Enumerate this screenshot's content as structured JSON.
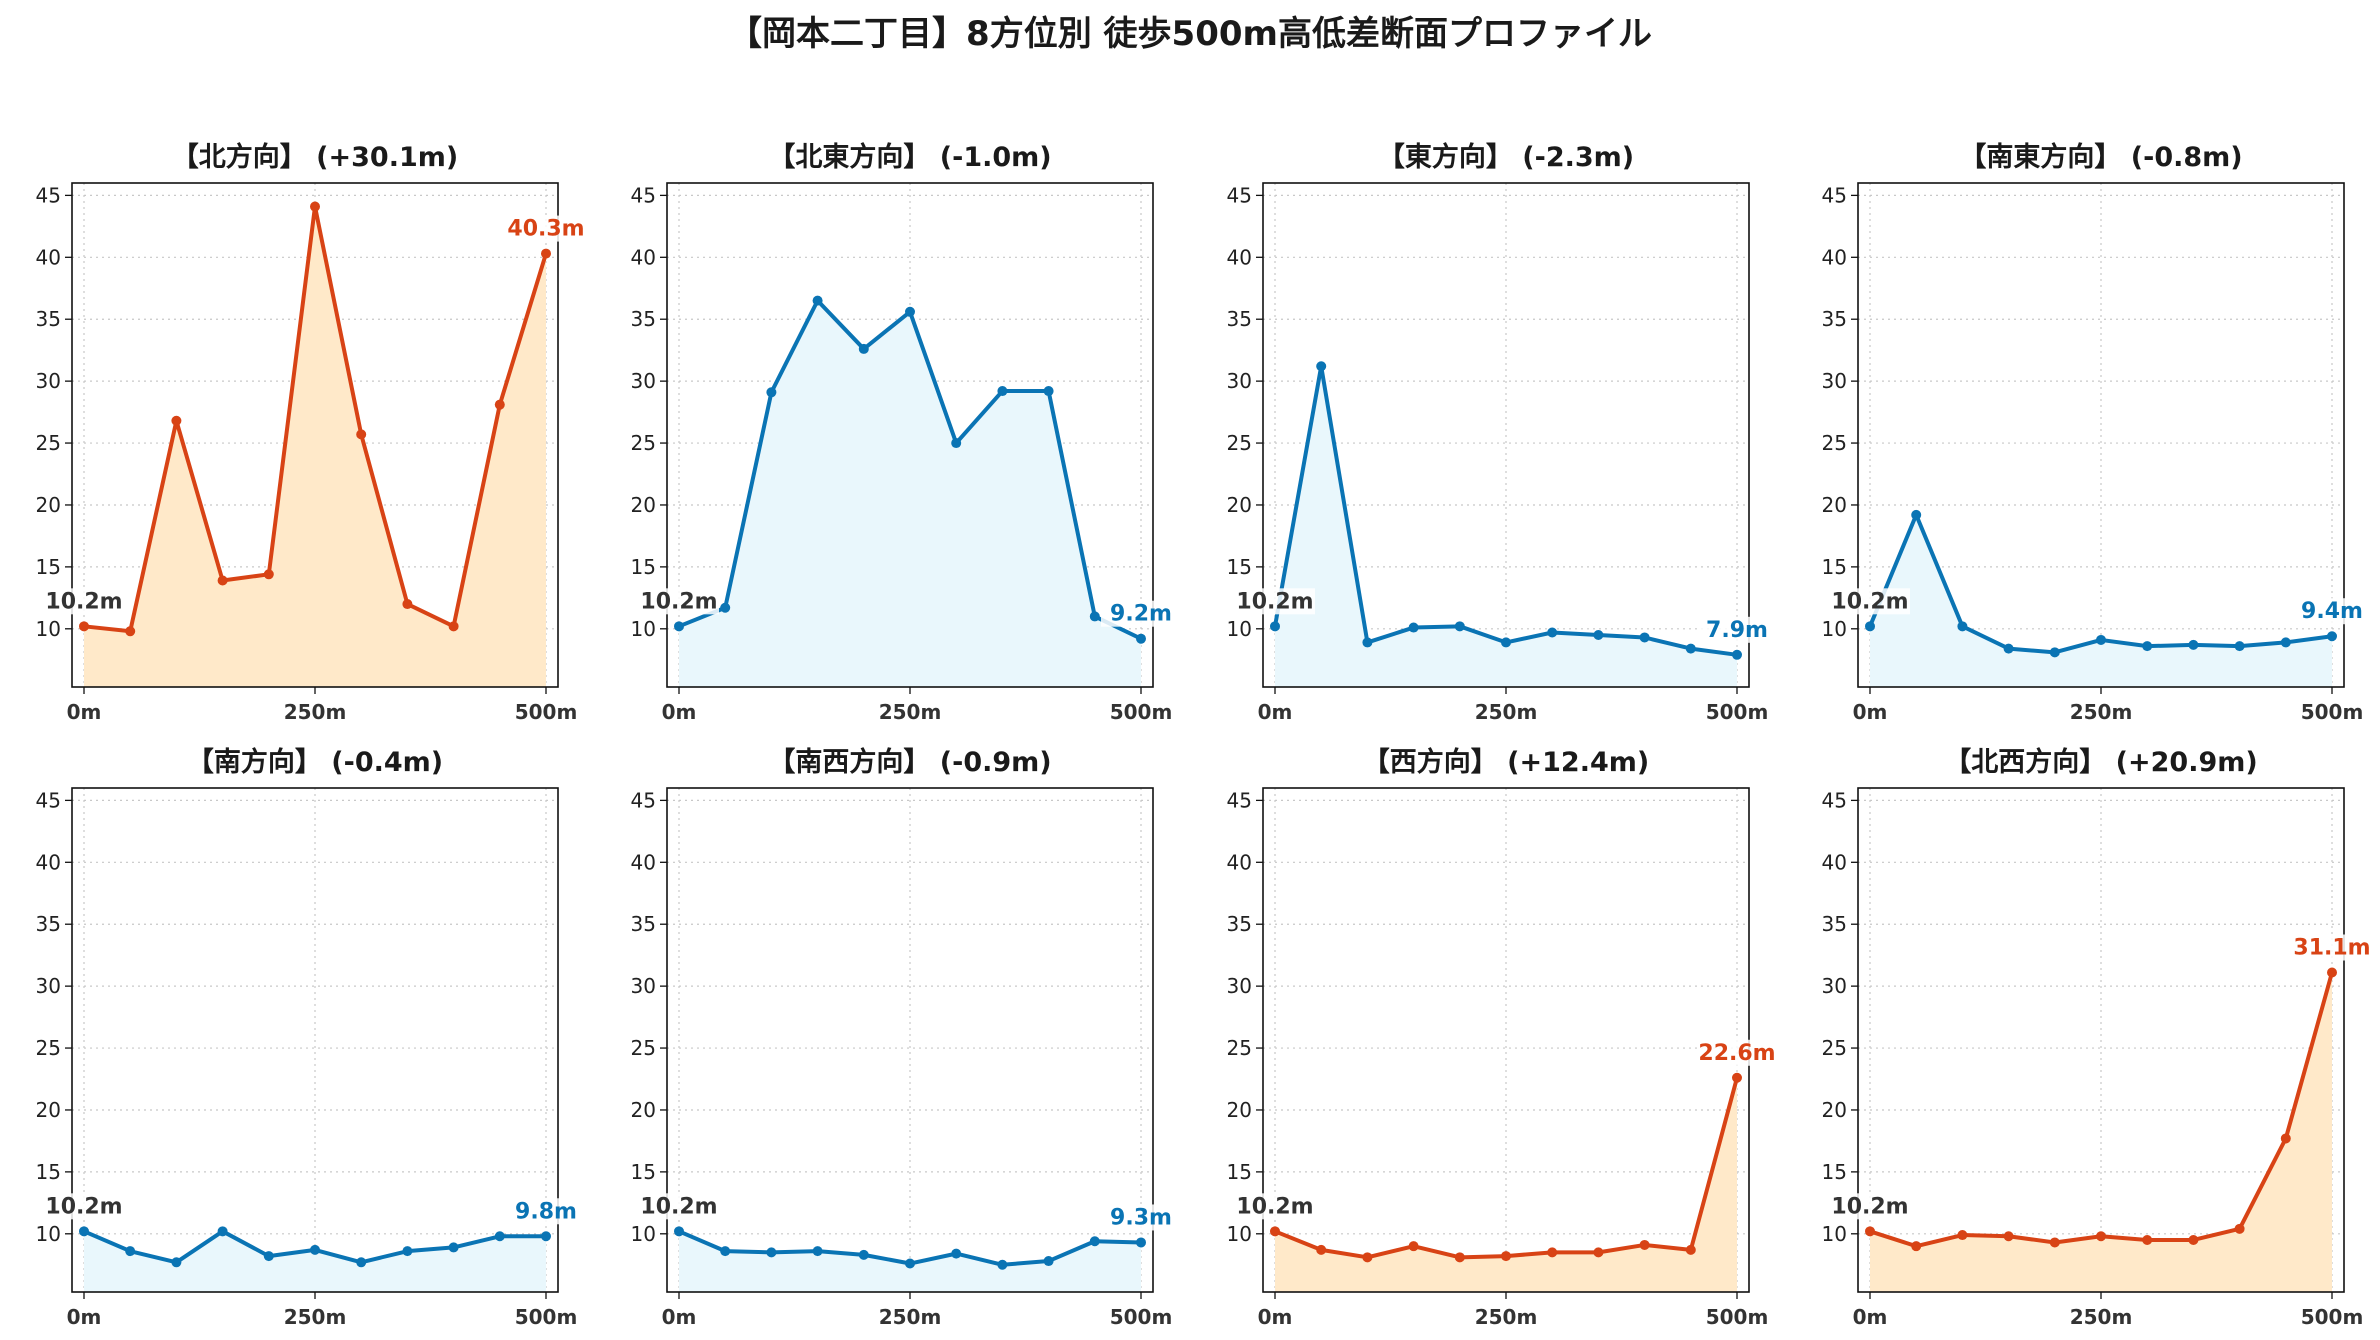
{
  "figure": {
    "title": "【岡本二丁目】8方位別 徒歩500m高低差断面プロファイル"
  },
  "colors": {
    "up_line": "#d84315",
    "up_fill": "#ffe9c9",
    "down_line": "#0a74b4",
    "down_fill": "#e9f7fc",
    "start_label": "#333333",
    "grid": "#c8c8c8"
  },
  "chart_data": [
    {
      "type": "area",
      "title": "【北方向】 (+30.1m)",
      "trend": "up",
      "x": [
        0,
        50,
        100,
        150,
        200,
        250,
        300,
        350,
        400,
        450,
        500
      ],
      "values": [
        10.2,
        9.8,
        26.8,
        13.9,
        14.4,
        44.1,
        25.7,
        12.0,
        10.2,
        28.1,
        40.3
      ],
      "start_label": "10.2m",
      "end_label": "40.3m",
      "xticks": [
        "0m",
        "250m",
        "500m"
      ],
      "yticks": [
        10,
        15,
        20,
        25,
        30,
        35,
        40,
        45
      ],
      "xlim": [
        0,
        500
      ],
      "ylim": [
        5.3,
        46
      ],
      "grid": true
    },
    {
      "type": "area",
      "title": "【北東方向】 (-1.0m)",
      "trend": "down",
      "x": [
        0,
        50,
        100,
        150,
        200,
        250,
        300,
        350,
        400,
        450,
        500
      ],
      "values": [
        10.2,
        11.7,
        29.1,
        36.5,
        32.6,
        35.6,
        25.0,
        29.2,
        29.2,
        11.0,
        9.2
      ],
      "start_label": "10.2m",
      "end_label": "9.2m",
      "xticks": [
        "0m",
        "250m",
        "500m"
      ],
      "yticks": [
        10,
        15,
        20,
        25,
        30,
        35,
        40,
        45
      ],
      "xlim": [
        0,
        500
      ],
      "ylim": [
        5.3,
        46
      ],
      "grid": true
    },
    {
      "type": "area",
      "title": "【東方向】 (-2.3m)",
      "trend": "down",
      "x": [
        0,
        50,
        100,
        150,
        200,
        250,
        300,
        350,
        400,
        450,
        500
      ],
      "values": [
        10.2,
        31.2,
        8.9,
        10.1,
        10.2,
        8.9,
        9.7,
        9.5,
        9.3,
        8.4,
        7.9
      ],
      "start_label": "10.2m",
      "end_label": "7.9m",
      "xticks": [
        "0m",
        "250m",
        "500m"
      ],
      "yticks": [
        10,
        15,
        20,
        25,
        30,
        35,
        40,
        45
      ],
      "xlim": [
        0,
        500
      ],
      "ylim": [
        5.3,
        46
      ],
      "grid": true
    },
    {
      "type": "area",
      "title": "【南東方向】 (-0.8m)",
      "trend": "down",
      "x": [
        0,
        50,
        100,
        150,
        200,
        250,
        300,
        350,
        400,
        450,
        500
      ],
      "values": [
        10.2,
        19.2,
        10.2,
        8.4,
        8.1,
        9.1,
        8.6,
        8.7,
        8.6,
        8.9,
        9.4
      ],
      "start_label": "10.2m",
      "end_label": "9.4m",
      "xticks": [
        "0m",
        "250m",
        "500m"
      ],
      "yticks": [
        10,
        15,
        20,
        25,
        30,
        35,
        40,
        45
      ],
      "xlim": [
        0,
        500
      ],
      "ylim": [
        5.3,
        46
      ],
      "grid": true
    },
    {
      "type": "area",
      "title": "【南方向】 (-0.4m)",
      "trend": "down",
      "x": [
        0,
        50,
        100,
        150,
        200,
        250,
        300,
        350,
        400,
        450,
        500
      ],
      "values": [
        10.2,
        8.6,
        7.7,
        10.2,
        8.2,
        8.7,
        7.7,
        8.6,
        8.9,
        9.8,
        9.8
      ],
      "start_label": "10.2m",
      "end_label": "9.8m",
      "xticks": [
        "0m",
        "250m",
        "500m"
      ],
      "yticks": [
        10,
        15,
        20,
        25,
        30,
        35,
        40,
        45
      ],
      "xlim": [
        0,
        500
      ],
      "ylim": [
        5.3,
        46
      ],
      "grid": true
    },
    {
      "type": "area",
      "title": "【南西方向】 (-0.9m)",
      "trend": "down",
      "x": [
        0,
        50,
        100,
        150,
        200,
        250,
        300,
        350,
        400,
        450,
        500
      ],
      "values": [
        10.2,
        8.6,
        8.5,
        8.6,
        8.3,
        7.6,
        8.4,
        7.5,
        7.8,
        9.4,
        9.3
      ],
      "start_label": "10.2m",
      "end_label": "9.3m",
      "xticks": [
        "0m",
        "250m",
        "500m"
      ],
      "yticks": [
        10,
        15,
        20,
        25,
        30,
        35,
        40,
        45
      ],
      "xlim": [
        0,
        500
      ],
      "ylim": [
        5.3,
        46
      ],
      "grid": true
    },
    {
      "type": "area",
      "title": "【西方向】 (+12.4m)",
      "trend": "up",
      "x": [
        0,
        50,
        100,
        150,
        200,
        250,
        300,
        350,
        400,
        450,
        500
      ],
      "values": [
        10.2,
        8.7,
        8.1,
        9.0,
        8.1,
        8.2,
        8.5,
        8.5,
        9.1,
        8.7,
        22.6
      ],
      "start_label": "10.2m",
      "end_label": "22.6m",
      "xticks": [
        "0m",
        "250m",
        "500m"
      ],
      "yticks": [
        10,
        15,
        20,
        25,
        30,
        35,
        40,
        45
      ],
      "xlim": [
        0,
        500
      ],
      "ylim": [
        5.3,
        46
      ],
      "grid": true
    },
    {
      "type": "area",
      "title": "【北西方向】 (+20.9m)",
      "trend": "up",
      "x": [
        0,
        50,
        100,
        150,
        200,
        250,
        300,
        350,
        400,
        450,
        500
      ],
      "values": [
        10.2,
        9.0,
        9.9,
        9.8,
        9.3,
        9.8,
        9.5,
        9.5,
        10.4,
        17.7,
        31.1
      ],
      "start_label": "10.2m",
      "end_label": "31.1m",
      "xticks": [
        "0m",
        "250m",
        "500m"
      ],
      "yticks": [
        10,
        15,
        20,
        25,
        30,
        35,
        40,
        45
      ],
      "xlim": [
        0,
        500
      ],
      "ylim": [
        5.3,
        46
      ],
      "grid": true
    }
  ]
}
